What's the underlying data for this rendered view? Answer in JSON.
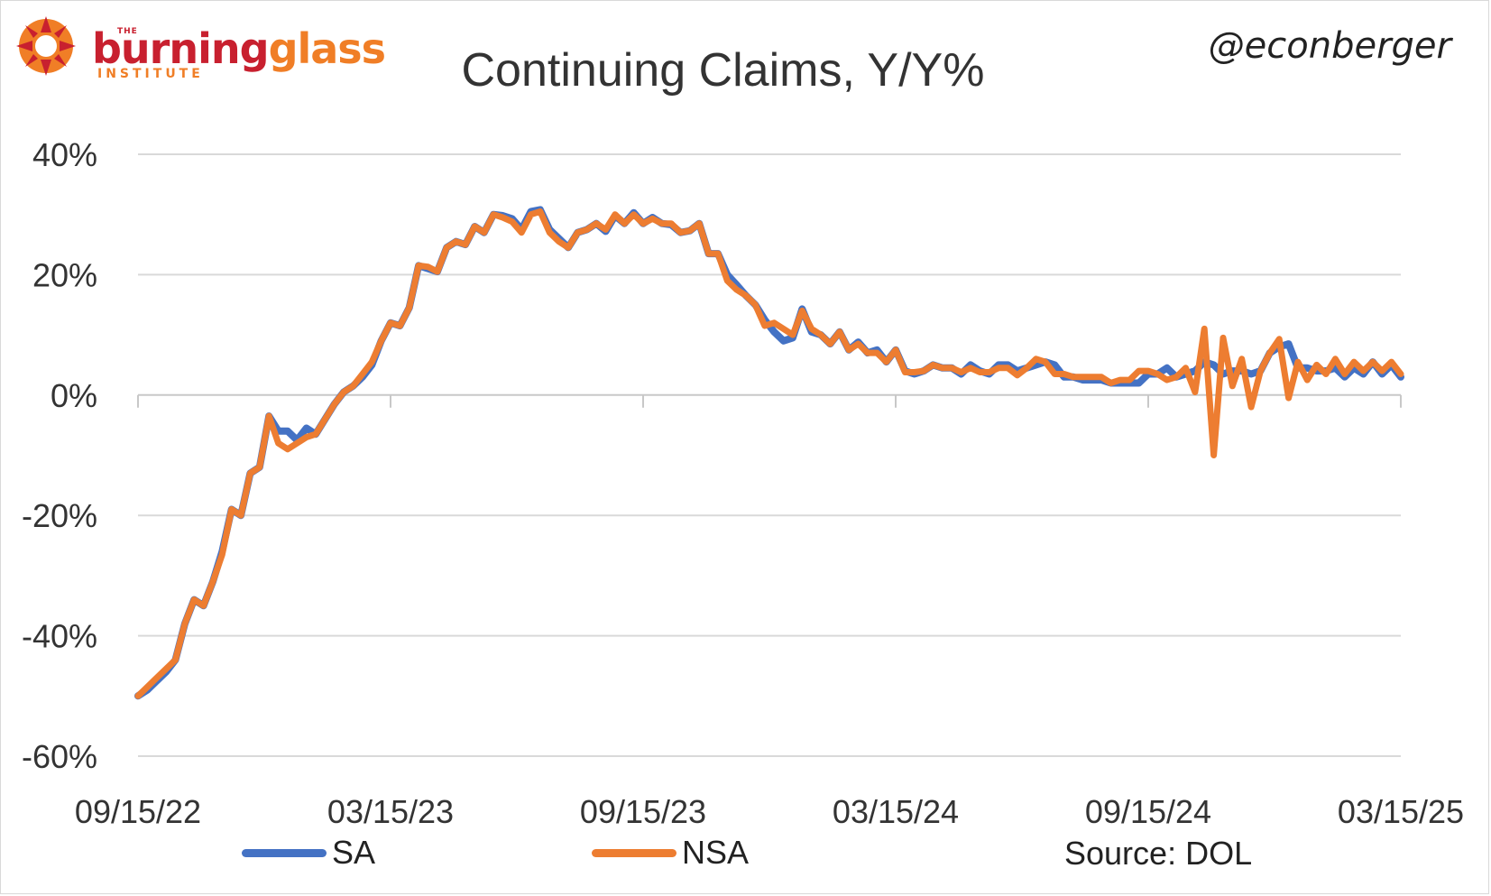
{
  "logo": {
    "the": "THE",
    "burning": "burning",
    "glass": "glass",
    "institute": "INSTITUTE",
    "colors": {
      "red": "#c8202f",
      "orange": "#f07e26"
    }
  },
  "handle": "@econberger",
  "source": "Source: DOL",
  "chart_data": {
    "type": "line",
    "title": "Continuing Claims, Y/Y%",
    "xlabel": "",
    "ylabel": "",
    "x_start": "09/15/22",
    "x_end": "03/15/25",
    "x_ticks": [
      "09/15/22",
      "03/15/23",
      "09/15/23",
      "03/15/24",
      "09/15/24",
      "03/15/25"
    ],
    "y_ticks": [
      "40%",
      "20%",
      "0%",
      "-20%",
      "-40%",
      "-60%"
    ],
    "ylim": [
      -60,
      40
    ],
    "y_unit": "%",
    "grid": "horizontal",
    "legend_position": "bottom",
    "colors": {
      "SA": "#4472c4",
      "NSA": "#ed7d31"
    },
    "series": [
      {
        "name": "SA",
        "values": [
          -50,
          -49,
          -47.5,
          -46,
          -44,
          -38,
          -34,
          -35,
          -31,
          -26,
          -19,
          -20,
          -13,
          -12,
          -3.5,
          -6,
          -6,
          -7.5,
          -5.5,
          -6.5,
          -4,
          -1.5,
          0.5,
          1.5,
          3,
          5,
          9,
          12,
          11.5,
          14.5,
          21.5,
          21,
          20.5,
          24.5,
          25.5,
          25,
          28,
          27,
          30,
          29.8,
          29.3,
          27.5,
          30.5,
          30.8,
          27.5,
          26,
          24.5,
          27,
          27.5,
          28.5,
          27.2,
          29.8,
          28.5,
          30.3,
          28.5,
          29.5,
          28.5,
          28.3,
          27,
          27.3,
          28.5,
          23.5,
          23.5,
          20,
          18.3,
          16.5,
          15,
          12.5,
          10.5,
          9,
          9.5,
          14.3,
          10.5,
          10,
          8.5,
          10.5,
          7.5,
          8.8,
          7,
          7.5,
          5.5,
          7.5,
          4,
          3.5,
          4,
          5,
          4.5,
          4.5,
          3.5,
          5,
          4,
          3.5,
          5,
          5,
          4,
          4.5,
          5,
          5.5,
          5,
          3,
          3,
          2.5,
          2.5,
          2.5,
          2,
          2,
          2,
          2,
          3.5,
          3.5,
          4.5,
          3,
          3.5,
          4,
          5.5,
          5,
          3.5,
          4,
          4,
          3.5,
          4,
          7,
          8,
          8.5,
          4.5,
          4.5,
          4,
          4,
          4.5,
          3,
          4.5,
          3.5,
          5.5,
          3.5,
          5,
          3
        ],
        "x_fraction_note": ""
      },
      {
        "name": "NSA",
        "values": [
          -50,
          -48.5,
          -47,
          -45.5,
          -44,
          -38,
          -34,
          -35,
          -31,
          -26.5,
          -19,
          -20,
          -13,
          -12,
          -3.5,
          -8,
          -9,
          -8,
          -7,
          -6.5,
          -4,
          -1.5,
          0.5,
          1.5,
          3.5,
          5.5,
          9,
          12,
          11.5,
          14.5,
          21.5,
          21.3,
          20.5,
          24.5,
          25.5,
          25,
          28,
          27,
          30,
          29.5,
          28.8,
          27,
          30,
          30.5,
          27,
          25.5,
          24.5,
          27,
          27.5,
          28.5,
          27.5,
          30,
          28.5,
          30,
          28.5,
          29.3,
          28.5,
          28.5,
          27,
          27.3,
          28.5,
          23.5,
          23.5,
          19,
          17.5,
          16.5,
          15,
          11.5,
          12,
          11,
          10,
          14,
          11,
          10,
          8.5,
          10.5,
          7.5,
          8.5,
          7,
          7,
          5.5,
          7.5,
          3.8,
          3.8,
          4,
          5,
          4.5,
          4.5,
          3.8,
          4.5,
          3.8,
          3.8,
          4.5,
          4.5,
          3.3,
          4.5,
          6,
          5.5,
          3.5,
          3.5,
          3,
          3,
          3,
          3,
          2,
          2.5,
          2.5,
          4,
          4,
          3.5,
          2.5,
          3,
          4.5,
          0.5,
          11,
          -10,
          9.5,
          1.5,
          6,
          -2,
          4,
          7,
          9.3,
          -0.5,
          5.5,
          2.5,
          5,
          3.5,
          6,
          3.5,
          5.5,
          4,
          5.5,
          4,
          5.5,
          3.5
        ]
      }
    ]
  }
}
